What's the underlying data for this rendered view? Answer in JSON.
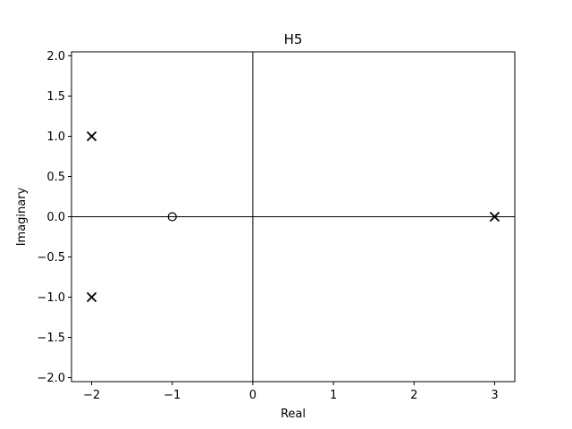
{
  "chart_data": {
    "type": "scatter",
    "title": "H5",
    "xlabel": "Real",
    "ylabel": "Imaginary",
    "xlim": [
      -2.25,
      3.25
    ],
    "ylim": [
      -2.05,
      2.05
    ],
    "xticks": [
      -2,
      -1,
      0,
      1,
      2,
      3
    ],
    "xtick_labels": [
      "−2",
      "−1",
      "0",
      "1",
      "2",
      "3"
    ],
    "yticks": [
      2.0,
      1.5,
      1.0,
      0.5,
      0.0,
      -0.5,
      -1.0,
      -1.5,
      -2.0
    ],
    "ytick_labels": [
      "2.0",
      "1.5",
      "1.0",
      "0.5",
      "0.0",
      "−0.5",
      "−1.0",
      "−1.5",
      "−2.0"
    ],
    "grid": false,
    "reference_lines": {
      "x": 0,
      "y": 0
    },
    "series": [
      {
        "marker": "x",
        "points": [
          {
            "x": -2,
            "y": 1
          },
          {
            "x": -2,
            "y": -1
          },
          {
            "x": 3,
            "y": 0
          }
        ]
      },
      {
        "marker": "o",
        "points": [
          {
            "x": -1,
            "y": 0
          }
        ]
      }
    ]
  }
}
